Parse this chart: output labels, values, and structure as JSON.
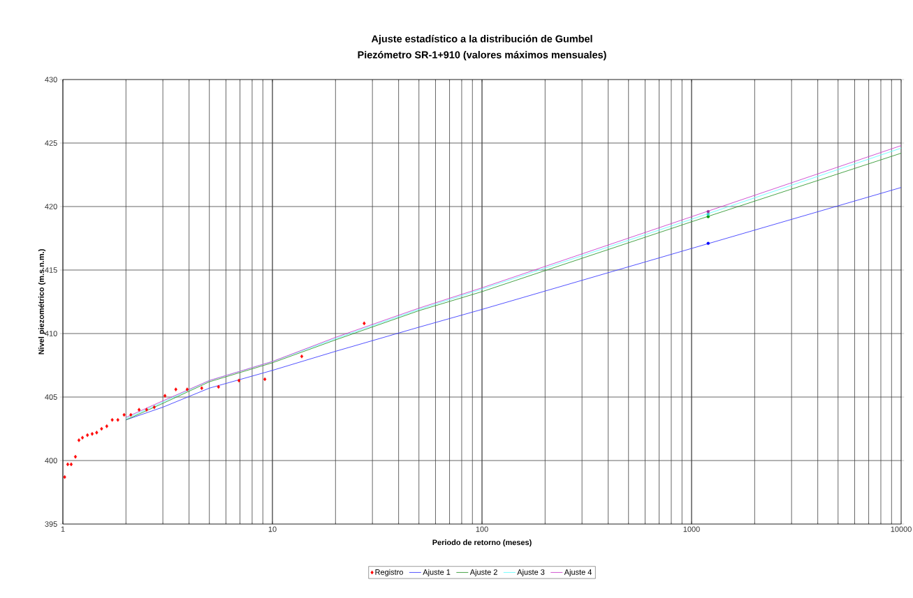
{
  "chart_data": {
    "type": "line",
    "title": "Ajuste estadístico a la distribución de Gumbel",
    "subtitle": "Piezómetro SR-1+910 (valores máximos mensuales)",
    "xlabel": "Periodo de retorno (meses)",
    "ylabel": "Nivel piezométrico (m.s.n.m.)",
    "log": "x",
    "grid": true,
    "legend": "bottom",
    "xlim": [
      1,
      10000
    ],
    "ylim": [
      395,
      430
    ],
    "xticks": [
      1,
      10,
      100,
      1000,
      10000
    ],
    "yticks": [
      395,
      400,
      405,
      410,
      415,
      420,
      425,
      430
    ],
    "series": [
      {
        "name": "Registro",
        "type": "scatter",
        "marker": "diamond",
        "color": "#ff0000",
        "x": [
          1.02,
          1.055,
          1.096,
          1.148,
          1.193,
          1.24,
          1.31,
          1.38,
          1.45,
          1.53,
          1.62,
          1.72,
          1.83,
          1.96,
          2.11,
          2.31,
          2.51,
          2.73,
          3.07,
          3.46,
          3.92,
          4.6,
          5.53,
          6.92,
          9.2,
          13.8,
          27.4
        ],
        "values": [
          398.7,
          399.7,
          399.7,
          400.3,
          401.6,
          401.8,
          402.0,
          402.1,
          402.2,
          402.5,
          402.7,
          403.2,
          403.2,
          403.6,
          403.6,
          404.0,
          404.0,
          404.2,
          405.1,
          405.6,
          405.6,
          405.7,
          405.8,
          406.3,
          406.4,
          408.2,
          410.8
        ]
      },
      {
        "name": "Ajuste 1",
        "marker": "none",
        "color": "#4040ff",
        "x": [
          2,
          3,
          5,
          10,
          20,
          50,
          100,
          1000,
          10000
        ],
        "values": [
          403.2,
          404.2,
          405.7,
          407.1,
          408.6,
          410.5,
          411.9,
          416.7,
          421.5
        ]
      },
      {
        "name": "Ajuste 2",
        "marker": "none",
        "color": "#339933",
        "x": [
          2,
          3,
          5,
          10,
          20,
          50,
          100,
          1000,
          10000
        ],
        "values": [
          403.2,
          404.5,
          406.2,
          407.7,
          409.5,
          411.8,
          413.3,
          418.8,
          424.2
        ]
      },
      {
        "name": "Ajuste 3",
        "marker": "none",
        "color": "#66ffff",
        "x": [
          2,
          3,
          5,
          10,
          20,
          50,
          100,
          1000,
          10000
        ],
        "values": [
          403.3,
          404.6,
          406.3,
          407.8,
          409.6,
          411.9,
          413.5,
          419.0,
          424.6
        ]
      },
      {
        "name": "Ajuste 4",
        "marker": "none",
        "color": "#cc44cc",
        "x": [
          2,
          3,
          5,
          10,
          20,
          50,
          100,
          1000,
          10000
        ],
        "values": [
          403.4,
          404.7,
          406.3,
          407.8,
          409.7,
          412.0,
          413.6,
          419.2,
          424.8
        ]
      },
      {
        "type": "scatter",
        "marker": "circle",
        "color": "#0000ff",
        "x": [
          1200
        ],
        "values": [
          417.1
        ]
      },
      {
        "type": "scatter",
        "marker": "circle",
        "color": "#009900",
        "x": [
          1200
        ],
        "values": [
          419.2
        ]
      },
      {
        "type": "scatter",
        "marker": "circle",
        "color": "#33cccc",
        "x": [
          1200
        ],
        "values": [
          419.4
        ]
      },
      {
        "type": "scatter",
        "marker": "circle",
        "color": "#993399",
        "x": [
          1200
        ],
        "values": [
          419.6
        ]
      }
    ]
  }
}
